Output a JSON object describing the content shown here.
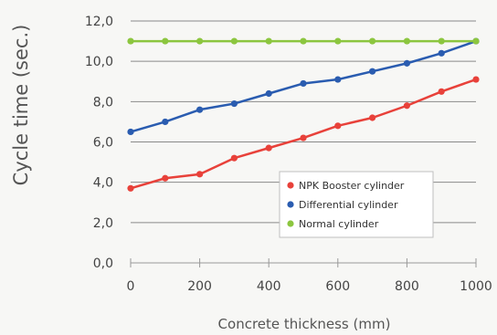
{
  "chart_data": {
    "type": "line",
    "xlabel": "Concrete thickness (mm)",
    "ylabel": "Cycle time (sec.)",
    "x": [
      0,
      100,
      200,
      300,
      400,
      500,
      600,
      700,
      800,
      900,
      1000
    ],
    "x_ticks": [
      0,
      200,
      400,
      600,
      800,
      1000
    ],
    "x_tick_labels": [
      "0",
      "200",
      "400",
      "600",
      "800",
      "1000"
    ],
    "y_ticks": [
      0,
      2,
      4,
      6,
      8,
      10,
      12
    ],
    "y_tick_labels": [
      "0,0",
      "2,0",
      "4,0",
      "6,0",
      "8,0",
      "10,0",
      "12,0"
    ],
    "xlim": [
      0,
      1000
    ],
    "ylim": [
      0,
      12
    ],
    "grid": "horizontal",
    "legend_position": "bottom-right",
    "series": [
      {
        "name": "NPK Booster cylinder",
        "color": "#e8413a",
        "values": [
          3.7,
          4.2,
          4.4,
          5.2,
          5.7,
          6.2,
          6.8,
          7.2,
          7.8,
          8.5,
          9.1
        ]
      },
      {
        "name": "Differential cylinder",
        "color": "#2a5cb0",
        "values": [
          6.5,
          7.0,
          7.6,
          7.9,
          8.4,
          8.9,
          9.1,
          9.5,
          9.9,
          10.4,
          11.0
        ]
      },
      {
        "name": "Normal cylinder",
        "color": "#8cc63f",
        "values": [
          11.0,
          11.0,
          11.0,
          11.0,
          11.0,
          11.0,
          11.0,
          11.0,
          11.0,
          11.0,
          11.0
        ]
      }
    ]
  }
}
